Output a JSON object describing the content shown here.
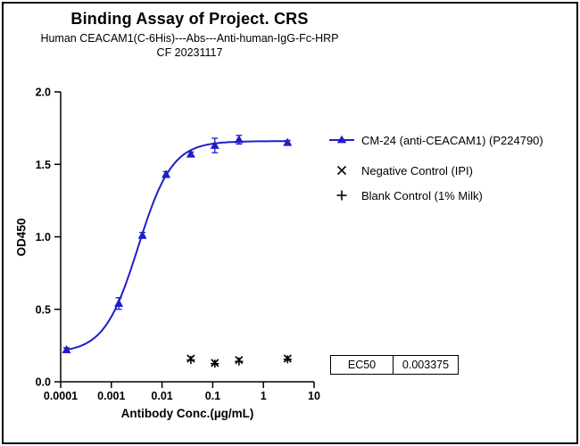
{
  "chart_data": {
    "type": "scatter",
    "title": "Binding Assay of Project. CRS",
    "subtitle": "Human CEACAM1(C-6His)---Abs---Anti-human-IgG-Fc-HRP",
    "subtitle2": "CF 20231117",
    "xlabel": "Antibody Conc.(µg/mL)",
    "ylabel": "OD450",
    "x_scale": "log10",
    "xlim": [
      0.0001,
      10
    ],
    "x_ticks": [
      "0.0001",
      "0.001",
      "0.01",
      "0.1",
      "1",
      "10"
    ],
    "ylim": [
      0,
      2
    ],
    "y_ticks": [
      "0.0",
      "0.5",
      "1.0",
      "1.5",
      "2.0"
    ],
    "grid": false,
    "legend_position": "right",
    "series": [
      {
        "name": "CM-24 (anti-CEACAM1) (P224790)",
        "marker": "triangle",
        "color": "#1E1EC8",
        "fit": {
          "model": "4PL",
          "bottom": 0.2,
          "top": 1.66,
          "ec50": 0.003375,
          "hill": 1.3
        },
        "points": [
          {
            "x": 0.00013,
            "y": 0.22,
            "err": 0.015
          },
          {
            "x": 0.0014,
            "y": 0.54,
            "err": 0.04
          },
          {
            "x": 0.0041,
            "y": 1.01,
            "err": 0.02
          },
          {
            "x": 0.012,
            "y": 1.43,
            "err": 0.02
          },
          {
            "x": 0.037,
            "y": 1.57,
            "err": 0.015
          },
          {
            "x": 0.11,
            "y": 1.63,
            "err": 0.05
          },
          {
            "x": 0.33,
            "y": 1.67,
            "err": 0.03
          },
          {
            "x": 3,
            "y": 1.65,
            "err": 0.015
          }
        ]
      },
      {
        "name": "Negative Control (IPI)",
        "marker": "x",
        "color": "#000000",
        "points": [
          {
            "x": 0.037,
            "y": 0.16
          },
          {
            "x": 0.11,
            "y": 0.13
          },
          {
            "x": 0.33,
            "y": 0.15
          },
          {
            "x": 3,
            "y": 0.16
          }
        ]
      },
      {
        "name": "Blank Control (1% Milk)",
        "marker": "plus",
        "color": "#000000",
        "points": [
          {
            "x": 0.037,
            "y": 0.15
          },
          {
            "x": 0.11,
            "y": 0.125
          },
          {
            "x": 0.33,
            "y": 0.14
          },
          {
            "x": 3,
            "y": 0.155
          }
        ]
      }
    ],
    "ec50_table": {
      "label": "EC50",
      "value": "0.003375"
    }
  }
}
